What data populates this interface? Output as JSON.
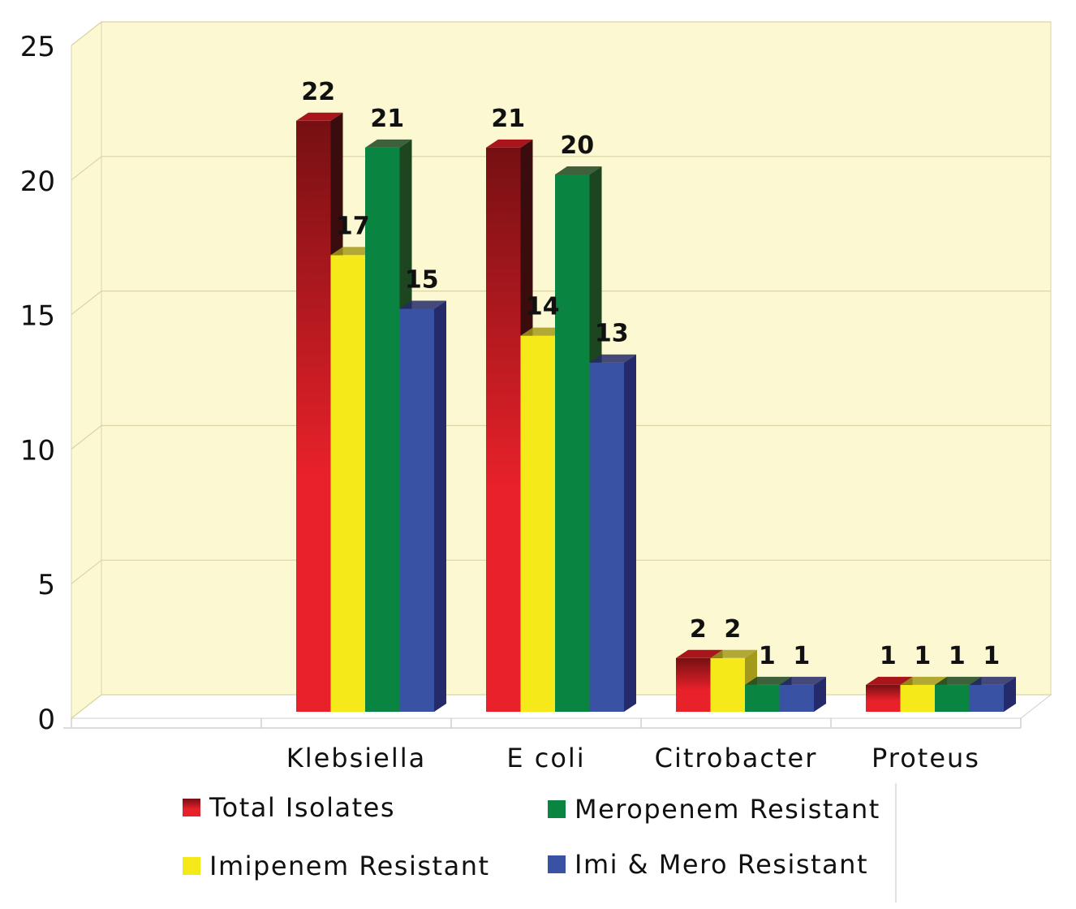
{
  "chart_data": {
    "type": "bar",
    "title": "",
    "xlabel": "",
    "ylabel": "",
    "ylim": [
      0,
      25
    ],
    "yticks": [
      0,
      5,
      10,
      15,
      20,
      25
    ],
    "grid": true,
    "style": "3d-clustered-column",
    "categories": [
      "Klebsiella",
      "E  coli",
      "Citrobacter",
      "Proteus"
    ],
    "series": [
      {
        "name": "Total Isolates",
        "values": [
          22,
          21,
          2,
          1
        ],
        "color": "#e8212a",
        "color_top": "#761013",
        "side": "#3a0c0e"
      },
      {
        "name": "Imipenem Resistant",
        "values": [
          17,
          14,
          2,
          1
        ],
        "color": "#f6e919",
        "color_top": "#f6e919",
        "side": "#a39a1b"
      },
      {
        "name": "Meropenem Resistant",
        "values": [
          21,
          20,
          1,
          1
        ],
        "color": "#0a8541",
        "color_top": "#0a8541",
        "side": "#1c4520"
      },
      {
        "name": "Imi & Mero Resistant",
        "values": [
          15,
          13,
          1,
          1
        ],
        "color": "#3a52a4",
        "color_top": "#3a52a4",
        "side": "#252a6a"
      }
    ],
    "legend_position": "bottom",
    "wall_color": "#fcf9d2"
  }
}
